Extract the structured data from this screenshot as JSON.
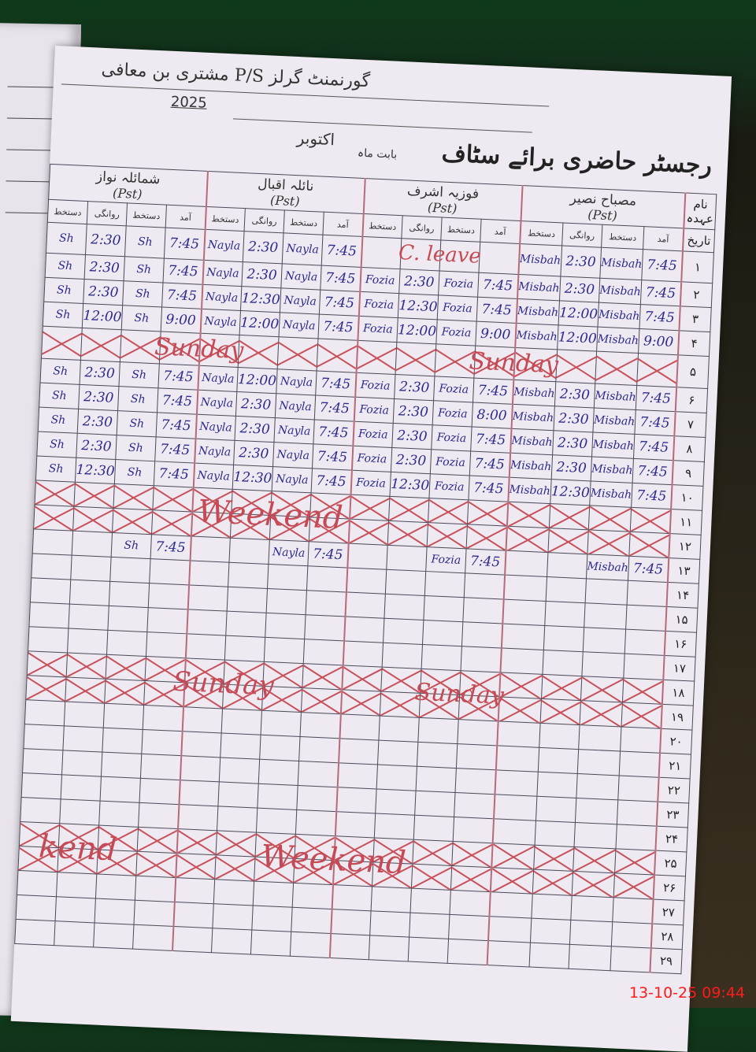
{
  "register": {
    "school_line": "گورنمنٹ گرلز P/S مشتری بن معافی",
    "year": "2025",
    "title": "رجسٹر حاضری برائے سٹاف",
    "month_label": "بابت ماہ",
    "month_value": "اکتوبر",
    "name_label": "نام",
    "designation_label": "عہدہ",
    "date_label": "تاریخ"
  },
  "column_headers": [
    "دستخط",
    "روانگی",
    "دستخط",
    "آمد"
  ],
  "staff": [
    {
      "name": "شمائلہ نواز",
      "designation": "(Pst)"
    },
    {
      "name": "نائلہ اقبال",
      "designation": "(Pst)"
    },
    {
      "name": "فوزیہ اشرف",
      "designation": "(Pst)"
    },
    {
      "name": "مصباح نصیر",
      "designation": "(Pst)"
    }
  ],
  "rows": [
    {
      "date": "۱",
      "crossed": false,
      "entries": [
        [
          "Sh",
          "2:30",
          "Sh",
          "7:45"
        ],
        [
          "Nayla",
          "2:30",
          "Nayla",
          "7:45"
        ],
        [
          "",
          "",
          "",
          ""
        ],
        [
          "Misbah",
          "2:30",
          "Misbah",
          "7:45"
        ]
      ]
    },
    {
      "date": "۲",
      "crossed": false,
      "entries": [
        [
          "Sh",
          "2:30",
          "Sh",
          "7:45"
        ],
        [
          "Nayla",
          "2:30",
          "Nayla",
          "7:45"
        ],
        [
          "Fozia",
          "2:30",
          "Fozia",
          "7:45"
        ],
        [
          "Misbah",
          "2:30",
          "Misbah",
          "7:45"
        ]
      ]
    },
    {
      "date": "۳",
      "crossed": false,
      "entries": [
        [
          "Sh",
          "2:30",
          "Sh",
          "7:45"
        ],
        [
          "Nayla",
          "12:30",
          "Nayla",
          "7:45"
        ],
        [
          "Fozia",
          "12:30",
          "Fozia",
          "7:45"
        ],
        [
          "Misbah",
          "12:00",
          "Misbah",
          "7:45"
        ]
      ]
    },
    {
      "date": "۴",
      "crossed": false,
      "entries": [
        [
          "Sh",
          "12:00",
          "Sh",
          "9:00"
        ],
        [
          "Nayla",
          "12:00",
          "Nayla",
          "7:45"
        ],
        [
          "Fozia",
          "12:00",
          "Fozia",
          "9:00"
        ],
        [
          "Misbah",
          "12:00",
          "Misbah",
          "9:00"
        ]
      ]
    },
    {
      "date": "۵",
      "crossed": true,
      "entries": [
        [
          "",
          "",
          "",
          ""
        ],
        [
          "",
          "",
          "",
          ""
        ],
        [
          "",
          "",
          "",
          ""
        ],
        [
          "",
          "",
          "",
          ""
        ]
      ]
    },
    {
      "date": "۶",
      "crossed": false,
      "entries": [
        [
          "Sh",
          "2:30",
          "Sh",
          "7:45"
        ],
        [
          "Nayla",
          "12:00",
          "Nayla",
          "7:45"
        ],
        [
          "Fozia",
          "2:30",
          "Fozia",
          "7:45"
        ],
        [
          "Misbah",
          "2:30",
          "Misbah",
          "7:45"
        ]
      ]
    },
    {
      "date": "۷",
      "crossed": false,
      "entries": [
        [
          "Sh",
          "2:30",
          "Sh",
          "7:45"
        ],
        [
          "Nayla",
          "2:30",
          "Nayla",
          "7:45"
        ],
        [
          "Fozia",
          "2:30",
          "Fozia",
          "8:00"
        ],
        [
          "Misbah",
          "2:30",
          "Misbah",
          "7:45"
        ]
      ]
    },
    {
      "date": "۸",
      "crossed": false,
      "entries": [
        [
          "Sh",
          "2:30",
          "Sh",
          "7:45"
        ],
        [
          "Nayla",
          "2:30",
          "Nayla",
          "7:45"
        ],
        [
          "Fozia",
          "2:30",
          "Fozia",
          "7:45"
        ],
        [
          "Misbah",
          "2:30",
          "Misbah",
          "7:45"
        ]
      ]
    },
    {
      "date": "۹",
      "crossed": false,
      "entries": [
        [
          "Sh",
          "2:30",
          "Sh",
          "7:45"
        ],
        [
          "Nayla",
          "2:30",
          "Nayla",
          "7:45"
        ],
        [
          "Fozia",
          "2:30",
          "Fozia",
          "7:45"
        ],
        [
          "Misbah",
          "2:30",
          "Misbah",
          "7:45"
        ]
      ]
    },
    {
      "date": "۱۰",
      "crossed": false,
      "entries": [
        [
          "Sh",
          "12:30",
          "Sh",
          "7:45"
        ],
        [
          "Nayla",
          "12:30",
          "Nayla",
          "7:45"
        ],
        [
          "Fozia",
          "12:30",
          "Fozia",
          "7:45"
        ],
        [
          "Misbah",
          "12:30",
          "Misbah",
          "7:45"
        ]
      ]
    },
    {
      "date": "۱۱",
      "crossed": true,
      "entries": [
        [
          "",
          "",
          "",
          ""
        ],
        [
          "",
          "",
          "",
          ""
        ],
        [
          "",
          "",
          "",
          ""
        ],
        [
          "",
          "",
          "",
          ""
        ]
      ]
    },
    {
      "date": "۱۲",
      "crossed": true,
      "entries": [
        [
          "",
          "",
          "",
          ""
        ],
        [
          "",
          "",
          "",
          ""
        ],
        [
          "",
          "",
          "",
          ""
        ],
        [
          "",
          "",
          "",
          ""
        ]
      ]
    },
    {
      "date": "۱۳",
      "crossed": false,
      "entries": [
        [
          "",
          "",
          "Sh",
          "7:45"
        ],
        [
          "",
          "",
          "Nayla",
          "7:45"
        ],
        [
          "",
          "",
          "Fozia",
          "7:45"
        ],
        [
          "",
          "",
          "Misbah",
          "7:45"
        ]
      ]
    },
    {
      "date": "۱۴",
      "crossed": false,
      "entries": [
        [
          "",
          "",
          "",
          ""
        ],
        [
          "",
          "",
          "",
          ""
        ],
        [
          "",
          "",
          "",
          ""
        ],
        [
          "",
          "",
          "",
          ""
        ]
      ]
    },
    {
      "date": "۱۵",
      "crossed": false,
      "entries": [
        [
          "",
          "",
          "",
          ""
        ],
        [
          "",
          "",
          "",
          ""
        ],
        [
          "",
          "",
          "",
          ""
        ],
        [
          "",
          "",
          "",
          ""
        ]
      ]
    },
    {
      "date": "۱۶",
      "crossed": false,
      "entries": [
        [
          "",
          "",
          "",
          ""
        ],
        [
          "",
          "",
          "",
          ""
        ],
        [
          "",
          "",
          "",
          ""
        ],
        [
          "",
          "",
          "",
          ""
        ]
      ]
    },
    {
      "date": "۱۷",
      "crossed": false,
      "entries": [
        [
          "",
          "",
          "",
          ""
        ],
        [
          "",
          "",
          "",
          ""
        ],
        [
          "",
          "",
          "",
          ""
        ],
        [
          "",
          "",
          "",
          ""
        ]
      ]
    },
    {
      "date": "۱۸",
      "crossed": true,
      "entries": [
        [
          "",
          "",
          "",
          ""
        ],
        [
          "",
          "",
          "",
          ""
        ],
        [
          "",
          "",
          "",
          ""
        ],
        [
          "",
          "",
          "",
          ""
        ]
      ]
    },
    {
      "date": "۱۹",
      "crossed": true,
      "entries": [
        [
          "",
          "",
          "",
          ""
        ],
        [
          "",
          "",
          "",
          ""
        ],
        [
          "",
          "",
          "",
          ""
        ],
        [
          "",
          "",
          "",
          ""
        ]
      ]
    },
    {
      "date": "۲۰",
      "crossed": false,
      "entries": [
        [
          "",
          "",
          "",
          ""
        ],
        [
          "",
          "",
          "",
          ""
        ],
        [
          "",
          "",
          "",
          ""
        ],
        [
          "",
          "",
          "",
          ""
        ]
      ]
    },
    {
      "date": "۲۱",
      "crossed": false,
      "entries": [
        [
          "",
          "",
          "",
          ""
        ],
        [
          "",
          "",
          "",
          ""
        ],
        [
          "",
          "",
          "",
          ""
        ],
        [
          "",
          "",
          "",
          ""
        ]
      ]
    },
    {
      "date": "۲۲",
      "crossed": false,
      "entries": [
        [
          "",
          "",
          "",
          ""
        ],
        [
          "",
          "",
          "",
          ""
        ],
        [
          "",
          "",
          "",
          ""
        ],
        [
          "",
          "",
          "",
          ""
        ]
      ]
    },
    {
      "date": "۲۳",
      "crossed": false,
      "entries": [
        [
          "",
          "",
          "",
          ""
        ],
        [
          "",
          "",
          "",
          ""
        ],
        [
          "",
          "",
          "",
          ""
        ],
        [
          "",
          "",
          "",
          ""
        ]
      ]
    },
    {
      "date": "۲۴",
      "crossed": false,
      "entries": [
        [
          "",
          "",
          "",
          ""
        ],
        [
          "",
          "",
          "",
          ""
        ],
        [
          "",
          "",
          "",
          ""
        ],
        [
          "",
          "",
          "",
          ""
        ]
      ]
    },
    {
      "date": "۲۵",
      "crossed": true,
      "entries": [
        [
          "",
          "",
          "",
          ""
        ],
        [
          "",
          "",
          "",
          ""
        ],
        [
          "",
          "",
          "",
          ""
        ],
        [
          "",
          "",
          "",
          ""
        ]
      ]
    },
    {
      "date": "۲۶",
      "crossed": true,
      "entries": [
        [
          "",
          "",
          "",
          ""
        ],
        [
          "",
          "",
          "",
          ""
        ],
        [
          "",
          "",
          "",
          ""
        ],
        [
          "",
          "",
          "",
          ""
        ]
      ]
    },
    {
      "date": "۲۷",
      "crossed": false,
      "entries": [
        [
          "",
          "",
          "",
          ""
        ],
        [
          "",
          "",
          "",
          ""
        ],
        [
          "",
          "",
          "",
          ""
        ],
        [
          "",
          "",
          "",
          ""
        ]
      ]
    },
    {
      "date": "۲۸",
      "crossed": false,
      "entries": [
        [
          "",
          "",
          "",
          ""
        ],
        [
          "",
          "",
          "",
          ""
        ],
        [
          "",
          "",
          "",
          ""
        ],
        [
          "",
          "",
          "",
          ""
        ]
      ]
    },
    {
      "date": "۲۹",
      "crossed": false,
      "entries": [
        [
          "",
          "",
          "",
          ""
        ],
        [
          "",
          "",
          "",
          ""
        ],
        [
          "",
          "",
          "",
          ""
        ],
        [
          "",
          "",
          "",
          ""
        ]
      ]
    }
  ],
  "annotations": [
    "C. leave",
    "Sunday",
    "Sunday",
    "Weekend",
    "Sunday",
    "Sunday",
    "kend",
    "Weekend"
  ],
  "ink_colors": {
    "blue": "#2b2a8c",
    "red": "#c54a55"
  },
  "timestamp": "13-10-25  09:44"
}
